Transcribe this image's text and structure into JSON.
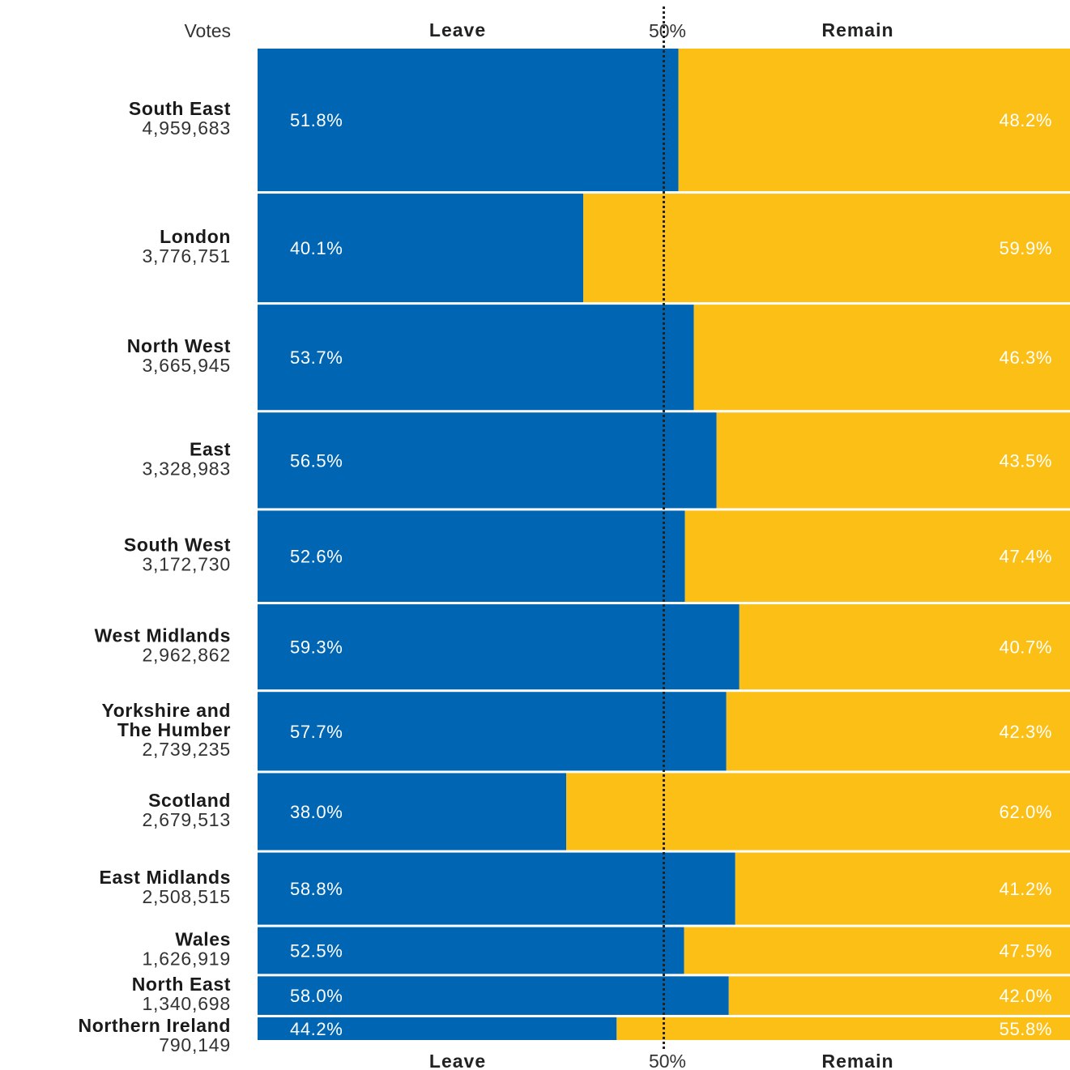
{
  "header": {
    "votes_label": "Votes",
    "leave_label": "Leave",
    "midpoint_label": "50%",
    "remain_label": "Remain"
  },
  "footer": {
    "leave_label": "Leave",
    "midpoint_label": "50%",
    "remain_label": "Remain"
  },
  "colors": {
    "leave": "#0066b3",
    "remain": "#fbbf16",
    "leave_text": "#ffffff",
    "remain_text": "#ffffff",
    "midline": "#222222"
  },
  "chart_data": {
    "type": "bar",
    "orientation": "horizontal",
    "stacked": true,
    "percent_scale": [
      0,
      100
    ],
    "reference_line": 50,
    "categories": [
      "South East",
      "London",
      "North West",
      "East",
      "South West",
      "West Midlands",
      "Yorkshire and The Humber",
      "Scotland",
      "East Midlands",
      "Wales",
      "North East",
      "Northern Ireland"
    ],
    "category_lines": [
      [
        "South East"
      ],
      [
        "London"
      ],
      [
        "North West"
      ],
      [
        "East"
      ],
      [
        "South West"
      ],
      [
        "West Midlands"
      ],
      [
        "Yorkshire and",
        "The Humber"
      ],
      [
        "Scotland"
      ],
      [
        "East Midlands"
      ],
      [
        "Wales"
      ],
      [
        "North East"
      ],
      [
        "Northern Ireland"
      ]
    ],
    "votes": [
      4959683,
      3776751,
      3665945,
      3328983,
      3172730,
      2962862,
      2739235,
      2679513,
      2508515,
      1626919,
      1340698,
      790149
    ],
    "votes_labels": [
      "4,959,683",
      "3,776,751",
      "3,665,945",
      "3,328,983",
      "3,172,730",
      "2,962,862",
      "2,739,235",
      "2,679,513",
      "2,508,515",
      "1,626,919",
      "1,340,698",
      "790,149"
    ],
    "series": [
      {
        "name": "Leave",
        "values": [
          51.8,
          40.1,
          53.7,
          56.5,
          52.6,
          59.3,
          57.7,
          38.0,
          58.8,
          52.5,
          58.0,
          44.2
        ],
        "labels": [
          "51.8%",
          "40.1%",
          "53.7%",
          "56.5%",
          "52.6%",
          "59.3%",
          "57.7%",
          "38.0%",
          "58.8%",
          "52.5%",
          "58.0%",
          "44.2%"
        ]
      },
      {
        "name": "Remain",
        "values": [
          48.2,
          59.9,
          46.3,
          43.5,
          47.4,
          40.7,
          42.3,
          62.0,
          41.2,
          47.5,
          42.0,
          55.8
        ],
        "labels": [
          "48.2%",
          "59.9%",
          "46.3%",
          "43.5%",
          "47.4%",
          "40.7%",
          "42.3%",
          "62.0%",
          "41.2%",
          "47.5%",
          "42.0%",
          "55.8%"
        ]
      }
    ]
  }
}
